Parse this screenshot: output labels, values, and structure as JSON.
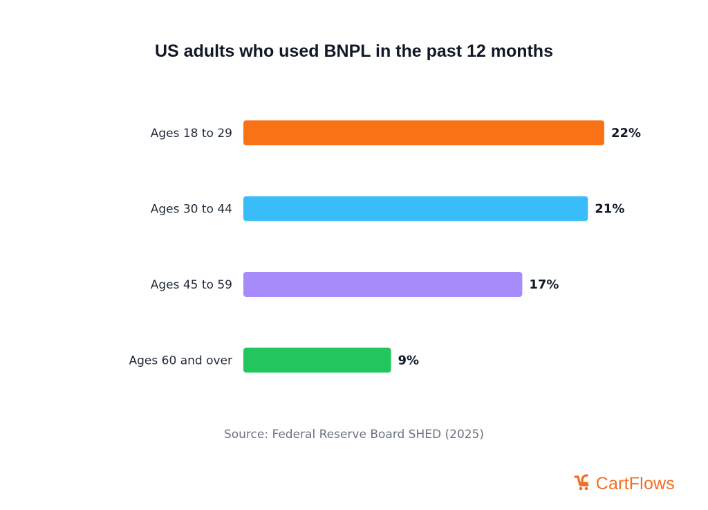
{
  "chart_data": {
    "type": "bar",
    "orientation": "horizontal",
    "title": "US adults who used BNPL in the past 12 months",
    "categories": [
      "Ages 18 to 29",
      "Ages 30 to 44",
      "Ages 45 to 59",
      "Ages 60 and over"
    ],
    "values": [
      22,
      21,
      17,
      9
    ],
    "value_labels": [
      "22%",
      "21%",
      "17%",
      "9%"
    ],
    "colors": [
      "#f97316",
      "#38bdf8",
      "#a78bfa",
      "#22c55e"
    ],
    "unit": "%",
    "xlim": [
      0,
      22
    ],
    "grid": false,
    "legend": "none",
    "source": "Source: Federal Reserve Board SHED (2025)"
  },
  "branding": {
    "logo_text": "CartFlows",
    "logo_icon": "cart-icon",
    "logo_color": "#f26d21"
  }
}
